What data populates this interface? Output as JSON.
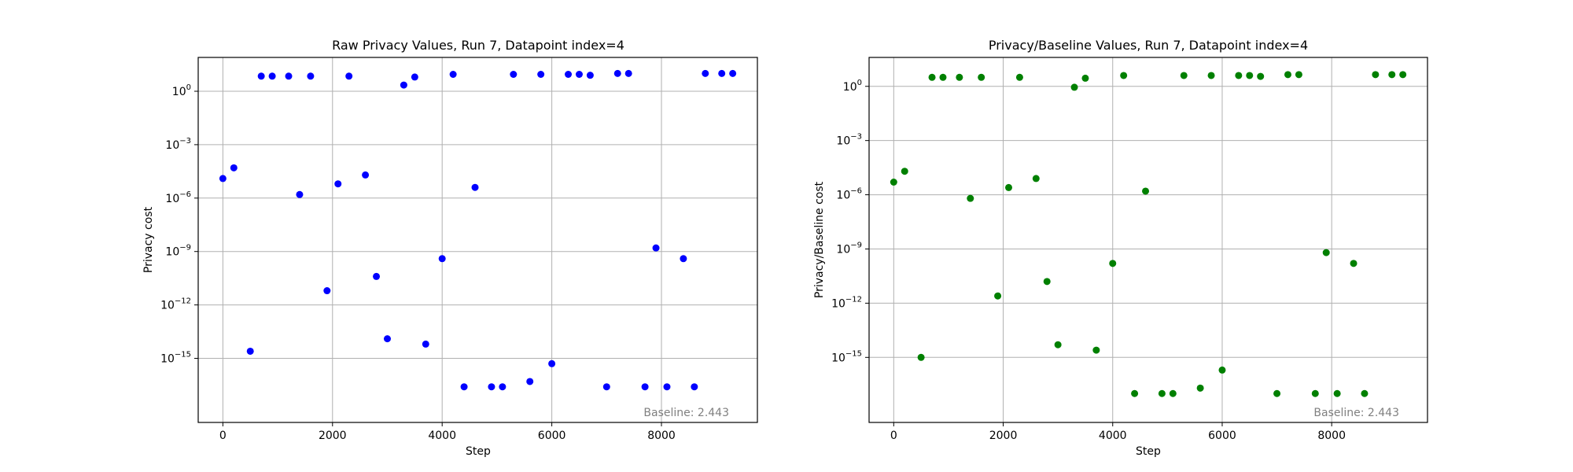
{
  "chart_data": [
    {
      "type": "scatter",
      "title": "Raw Privacy Values, Run 7, Datapoint index=4",
      "xlabel": "Step",
      "ylabel": "Privacy cost",
      "yscale": "log",
      "xlim": [
        -450,
        9750
      ],
      "ylim_exponent": [
        -18.6,
        1.9
      ],
      "x_ticks": [
        0,
        2000,
        4000,
        6000,
        8000
      ],
      "x_tick_labels": [
        "0",
        "2000",
        "4000",
        "6000",
        "8000"
      ],
      "y_ticks_exponent": [
        0,
        -3,
        -6,
        -9,
        -12,
        -15
      ],
      "y_tick_base": "10",
      "y_tick_exponent_labels": [
        "0",
        "−3",
        "−6",
        "−9",
        "−12",
        "−15"
      ],
      "grid": true,
      "color": "#0000ff",
      "annotation": "Baseline: 2.443",
      "series": [
        {
          "x": [
            0,
            200,
            500,
            700,
            900,
            1200,
            1400,
            1600,
            1900,
            2100,
            2300,
            2600,
            2800,
            3000,
            3300,
            3500,
            3700,
            4000,
            4200,
            4400,
            4600,
            4900,
            5100,
            5300,
            5600,
            5800,
            6000,
            6300,
            6500,
            6700,
            7000,
            7200,
            7400,
            7700,
            7900,
            8100,
            8400,
            8600,
            8800,
            9100,
            9300
          ],
          "y_exponent": [
            -4.9,
            -4.3,
            -14.6,
            0.85,
            0.85,
            0.85,
            -5.8,
            0.85,
            -11.2,
            -5.2,
            0.85,
            -4.7,
            -10.4,
            -13.9,
            0.35,
            0.8,
            -14.2,
            -9.4,
            0.95,
            -16.6,
            -5.4,
            -16.6,
            -16.6,
            0.95,
            -16.3,
            0.95,
            -15.3,
            0.95,
            0.95,
            0.9,
            -16.6,
            1.0,
            1.0,
            -16.6,
            -8.8,
            -16.6,
            -9.4,
            -16.6,
            1.0,
            1.0,
            1.0
          ]
        }
      ]
    },
    {
      "type": "scatter",
      "title": "Privacy/Baseline Values, Run 7, Datapoint index=4",
      "xlabel": "Step",
      "ylabel": "Privacy/Baseline cost",
      "yscale": "log",
      "xlim": [
        -450,
        9750
      ],
      "ylim_exponent": [
        -18.6,
        1.6
      ],
      "x_ticks": [
        0,
        2000,
        4000,
        6000,
        8000
      ],
      "x_tick_labels": [
        "0",
        "2000",
        "4000",
        "6000",
        "8000"
      ],
      "y_ticks_exponent": [
        0,
        -3,
        -6,
        -9,
        -12,
        -15
      ],
      "y_tick_base": "10",
      "y_tick_exponent_labels": [
        "0",
        "−3",
        "−6",
        "−9",
        "−12",
        "−15"
      ],
      "grid": true,
      "color": "#008000",
      "annotation": "Baseline: 2.443",
      "series": [
        {
          "x": [
            0,
            200,
            500,
            700,
            900,
            1200,
            1400,
            1600,
            1900,
            2100,
            2300,
            2600,
            2800,
            3000,
            3300,
            3500,
            3700,
            4000,
            4200,
            4400,
            4600,
            4900,
            5100,
            5300,
            5600,
            5800,
            6000,
            6300,
            6500,
            6700,
            7000,
            7200,
            7400,
            7700,
            7900,
            8100,
            8400,
            8600,
            8800,
            9100,
            9300
          ],
          "y_exponent": [
            -5.3,
            -4.7,
            -15.0,
            0.5,
            0.5,
            0.5,
            -6.2,
            0.5,
            -11.6,
            -5.6,
            0.5,
            -5.1,
            -10.8,
            -14.3,
            -0.05,
            0.45,
            -14.6,
            -9.8,
            0.6,
            -17.0,
            -5.8,
            -17.0,
            -17.0,
            0.6,
            -16.7,
            0.6,
            -15.7,
            0.6,
            0.6,
            0.55,
            -17.0,
            0.65,
            0.65,
            -17.0,
            -9.2,
            -17.0,
            -9.8,
            -17.0,
            0.65,
            0.65,
            0.65
          ]
        }
      ]
    }
  ]
}
